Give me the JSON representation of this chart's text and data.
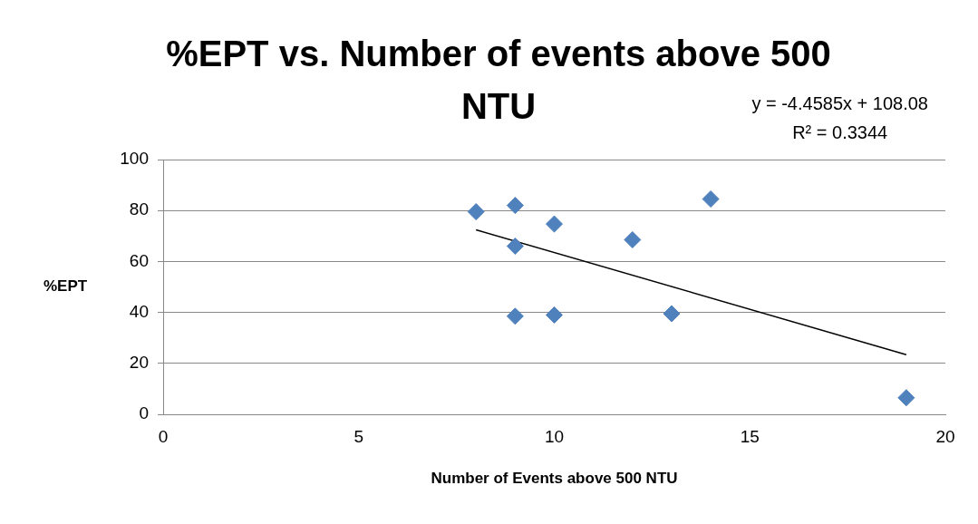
{
  "chart_data": {
    "type": "scatter",
    "title": "%EPT vs. Number of events above 500 NTU",
    "xlabel": "Number of Events above 500 NTU",
    "ylabel": "%EPT",
    "annotations": [
      "y = -4.4585x + 108.08",
      "R² = 0.3344"
    ],
    "series": [
      {
        "color": "#4f81bd",
        "marker": "diamond",
        "x": [
          8,
          9,
          9,
          9,
          10,
          10,
          12,
          13,
          14,
          19
        ],
        "values": [
          79.5,
          82,
          66,
          38.5,
          74.7,
          39,
          68.5,
          39.5,
          84.5,
          6.5
        ]
      },
      {
        "type": "line",
        "color": "#000000",
        "marker": "none",
        "x": [
          8,
          19
        ],
        "values": [
          72.4,
          23.4
        ]
      }
    ],
    "xlim": [
      0,
      20
    ],
    "xticks": [
      0,
      5,
      10,
      15,
      20
    ],
    "ylim": [
      0,
      100
    ],
    "yticks": [
      0,
      20,
      40,
      60,
      80,
      100
    ],
    "grid": "y",
    "legend": false
  }
}
